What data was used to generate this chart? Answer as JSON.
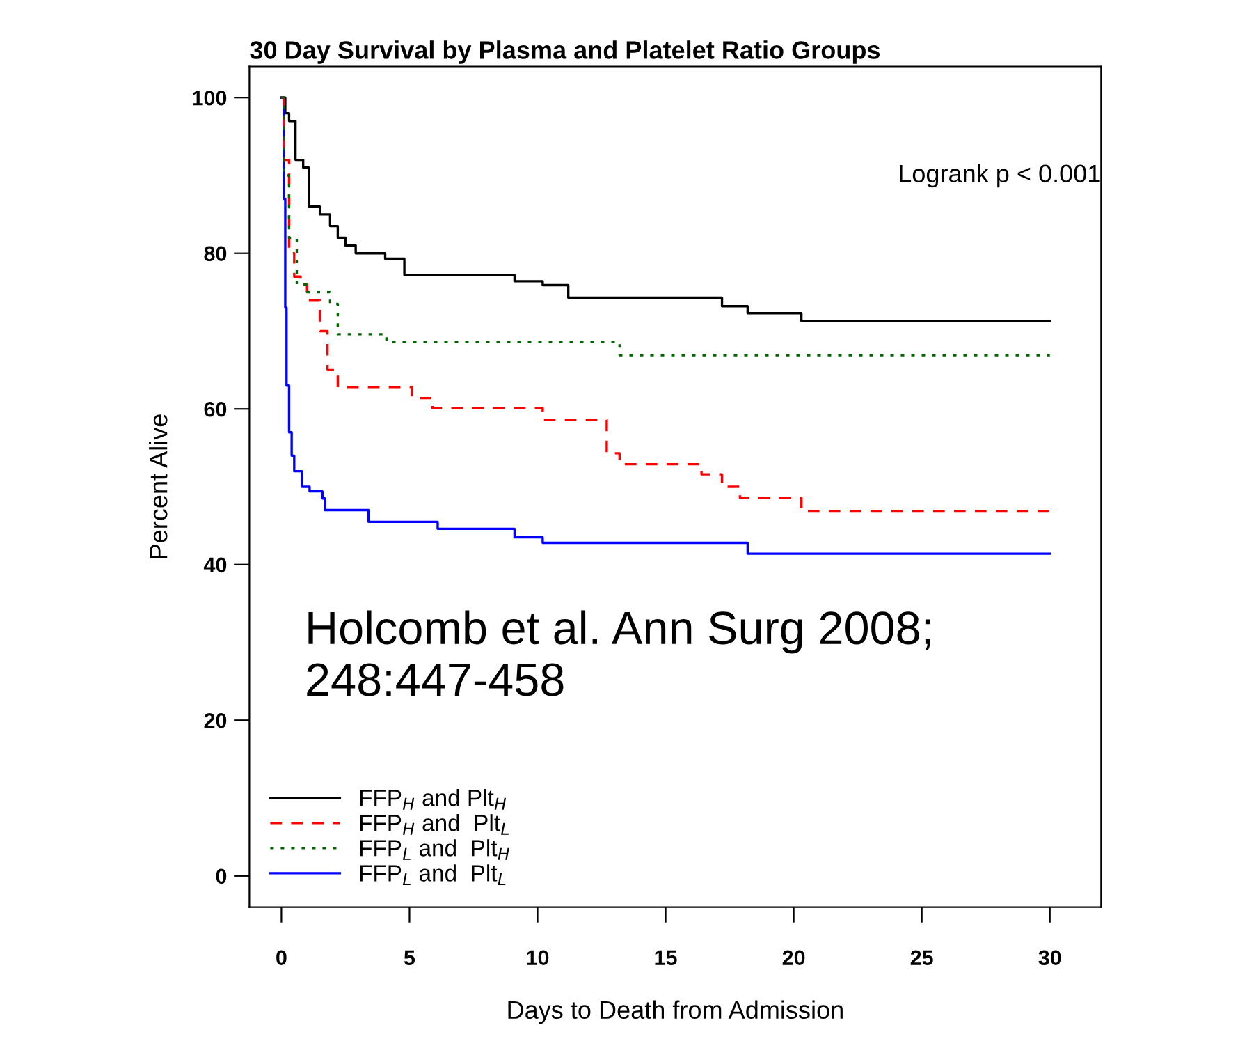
{
  "chart_data": {
    "type": "step",
    "title": "30 Day Survival by Plasma and Platelet Ratio Groups",
    "xlabel": "Days to Death from Admission",
    "ylabel": "Percent Alive",
    "xlim": [
      -1.25,
      32
    ],
    "ylim": [
      -4,
      104
    ],
    "xticks": [
      0,
      5,
      10,
      15,
      20,
      25,
      30
    ],
    "yticks": [
      0,
      20,
      40,
      60,
      80,
      100
    ],
    "grid": false,
    "legend": "bottom left",
    "annotations": [
      "Logrank p < 0.001",
      "Holcomb et al. Ann Surg 2008;\n248:447-458"
    ],
    "series": [
      {
        "name": "FFP$_{H}$ and Plt$_{H}$",
        "color": "#000000",
        "line_style": "solid",
        "x": [
          0,
          0.15,
          0.3,
          0.55,
          0.85,
          1.07,
          1.5,
          1.9,
          2.2,
          2.5,
          2.9,
          4.05,
          4.8,
          9.1,
          10.2,
          11.2,
          17.2,
          18.2,
          20.3,
          30
        ],
        "values": [
          100,
          98,
          97,
          92,
          91,
          86,
          85,
          83.5,
          82,
          81,
          80,
          79.3,
          77.2,
          76.4,
          75.9,
          74.3,
          73.2,
          72.3,
          71.3,
          71.3
        ]
      },
      {
        "name": "FFP$_{H}$ and  Plt$_{L}$",
        "color": "#ff0000",
        "line_style": "dashed",
        "x": [
          0,
          0.1,
          0.3,
          0.5,
          0.75,
          1.0,
          1.5,
          1.8,
          2.2,
          5.1,
          5.9,
          10.2,
          12.7,
          13.2,
          16.4,
          17.2,
          17.9,
          20.3,
          30
        ],
        "values": [
          100,
          92,
          80,
          77,
          76,
          74,
          70,
          65,
          62.8,
          61.4,
          60.1,
          58.6,
          54.3,
          52.9,
          51.6,
          50,
          48.6,
          46.9,
          46.9
        ]
      },
      {
        "name": "FFP$_{L}$ and  Plt$_{H}$",
        "color": "#006400",
        "line_style": "dotted",
        "x": [
          0,
          0.1,
          0.3,
          0.6,
          1.0,
          1.9,
          2.2,
          4.1,
          13.2,
          30
        ],
        "values": [
          100,
          90,
          82,
          76,
          75,
          73.5,
          69.6,
          68.6,
          66.9,
          66.9
        ]
      },
      {
        "name": "FFP$_{L}$ and  Plt$_{L}$",
        "color": "#0000ff",
        "line_style": "solid",
        "x": [
          0,
          0.1,
          0.15,
          0.2,
          0.3,
          0.4,
          0.5,
          0.8,
          1.1,
          1.6,
          1.7,
          3.4,
          6.1,
          9.1,
          10.2,
          18.2,
          30
        ],
        "values": [
          100,
          87,
          73,
          63,
          57,
          54,
          52,
          50,
          49.4,
          48.5,
          47,
          45.5,
          44.6,
          43.5,
          42.8,
          41.4,
          41.4
        ]
      }
    ]
  }
}
